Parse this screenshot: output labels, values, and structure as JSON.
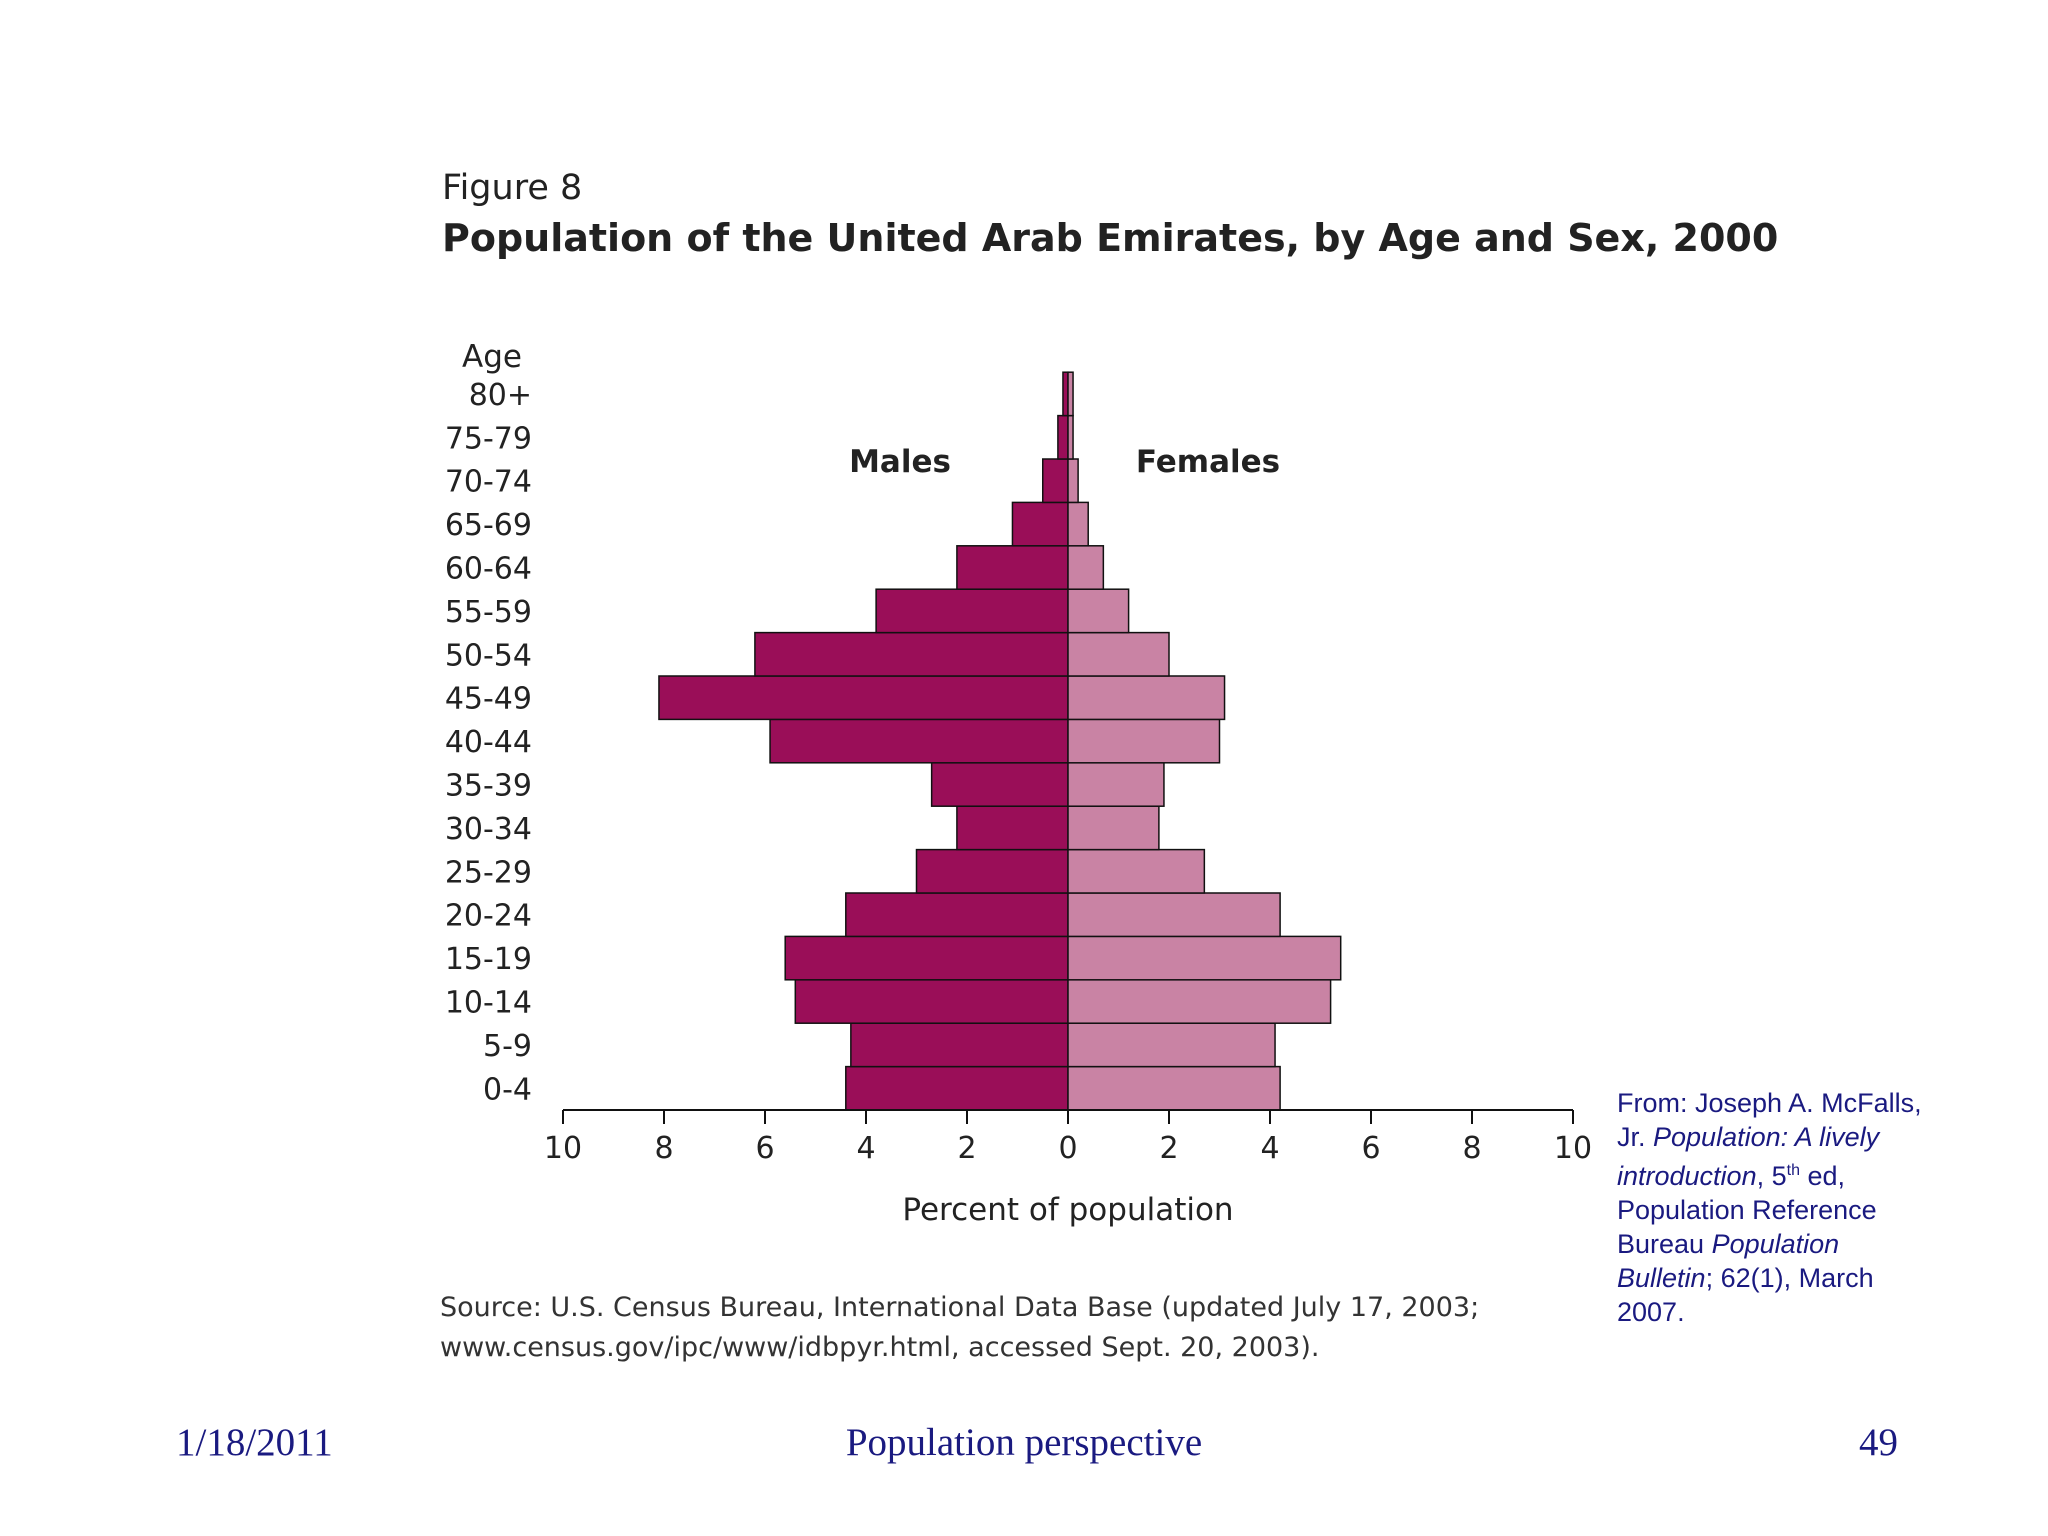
{
  "figure": {
    "label": "Figure 8",
    "title": "Population of the United Arab Emirates, by Age and Sex, 2000",
    "source_line1": "Source: U.S. Census Bureau, International Data Base (updated July 17, 2003;",
    "source_line2": "www.census.gov/ipc/www/idbpyr.html, accessed Sept. 20, 2003)."
  },
  "chart_data": {
    "type": "bar",
    "orientation": "horizontal-population-pyramid",
    "title": "Population of the United Arab Emirates, by Age and Sex, 2000",
    "ylabel": "Age",
    "xlabel": "Percent of population",
    "xlim": [
      -10,
      10
    ],
    "x_ticks": [
      -10,
      -8,
      -6,
      -4,
      -2,
      0,
      2,
      4,
      6,
      8,
      10
    ],
    "x_tick_labels": [
      "10",
      "8",
      "6",
      "4",
      "2",
      "0",
      "2",
      "4",
      "6",
      "8",
      "10"
    ],
    "categories": [
      "0-4",
      "5-9",
      "10-14",
      "15-19",
      "20-24",
      "25-29",
      "30-34",
      "35-39",
      "40-44",
      "45-49",
      "50-54",
      "55-59",
      "60-64",
      "65-69",
      "70-74",
      "75-79",
      "80+"
    ],
    "series": [
      {
        "name": "Males",
        "color": "#9a0e58",
        "values": [
          4.4,
          4.3,
          5.4,
          5.6,
          4.4,
          3.0,
          2.2,
          2.7,
          5.9,
          8.1,
          6.2,
          3.8,
          2.2,
          1.1,
          0.5,
          0.2,
          0.1
        ]
      },
      {
        "name": "Females",
        "color": "#c983a4",
        "values": [
          4.2,
          4.1,
          5.2,
          5.4,
          4.2,
          2.7,
          1.8,
          1.9,
          3.0,
          3.1,
          2.0,
          1.2,
          0.7,
          0.4,
          0.2,
          0.1,
          0.1
        ]
      }
    ],
    "grid": false,
    "legend": "inline-labels"
  },
  "citation": {
    "prefix": "From: Joseph A. McFalls, Jr. ",
    "book": "Population: A lively introduction",
    "edition_num": ", 5",
    "edition_sup": "th",
    "edition_rest": " ed, Population Reference Bureau ",
    "bulletin": "Population Bulletin",
    "rest": "; 62(1), March 2007."
  },
  "footer": {
    "date": "1/18/2011",
    "title": "Population perspective",
    "page": "49"
  }
}
